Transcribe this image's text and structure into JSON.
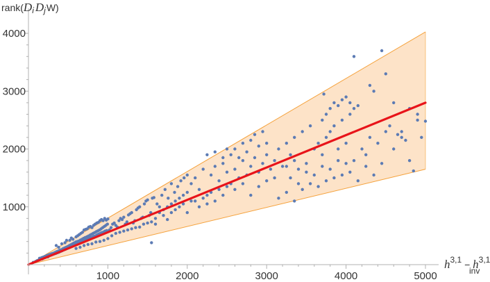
{
  "chart_data": {
    "type": "scatter",
    "title": "",
    "ylabel": {
      "prefix": "rank(",
      "d1": "D",
      "d1_sub": "i",
      "d2": "D",
      "d2_sub": "j",
      "suffix": "W)"
    },
    "xlabel": {
      "h1": "h",
      "h1_sup": "3,1",
      "minus": " − ",
      "h2": "h",
      "h2_sup": "3,1",
      "h2_sub": "inv"
    },
    "xlim": [
      0,
      5000
    ],
    "ylim": [
      0,
      4000
    ],
    "x_ticks": [
      1000,
      2000,
      3000,
      4000,
      5000
    ],
    "y_ticks": [
      1000,
      2000,
      3000,
      4000
    ],
    "x_tick_labels": [
      "1000",
      "2000",
      "3000",
      "4000",
      "5000"
    ],
    "y_tick_labels": [
      "1000",
      "2000",
      "3000",
      "4000"
    ],
    "fit_line": {
      "slope": 0.56,
      "intercept": 0,
      "color": "#e8141a"
    },
    "band": {
      "upper_slope": 0.805,
      "lower_slope": 0.33,
      "fill": "#fde3c8",
      "edge": "#f5a23c"
    },
    "point_color": "#5c7bb4",
    "grid": false,
    "points": [
      [
        60,
        40
      ],
      [
        90,
        55
      ],
      [
        110,
        70
      ],
      [
        130,
        80
      ],
      [
        140,
        110
      ],
      [
        150,
        95
      ],
      [
        165,
        120
      ],
      [
        175,
        100
      ],
      [
        185,
        130
      ],
      [
        195,
        115
      ],
      [
        205,
        140
      ],
      [
        215,
        125
      ],
      [
        225,
        150
      ],
      [
        235,
        160
      ],
      [
        245,
        135
      ],
      [
        255,
        170
      ],
      [
        265,
        155
      ],
      [
        275,
        180
      ],
      [
        285,
        165
      ],
      [
        295,
        190
      ],
      [
        305,
        175
      ],
      [
        315,
        200
      ],
      [
        325,
        185
      ],
      [
        335,
        210
      ],
      [
        345,
        195
      ],
      [
        355,
        225
      ],
      [
        365,
        205
      ],
      [
        375,
        235
      ],
      [
        385,
        215
      ],
      [
        395,
        250
      ],
      [
        405,
        230
      ],
      [
        415,
        260
      ],
      [
        425,
        240
      ],
      [
        435,
        275
      ],
      [
        445,
        255
      ],
      [
        455,
        290
      ],
      [
        465,
        265
      ],
      [
        475,
        300
      ],
      [
        485,
        280
      ],
      [
        495,
        315
      ],
      [
        505,
        290
      ],
      [
        515,
        330
      ],
      [
        525,
        300
      ],
      [
        535,
        345
      ],
      [
        545,
        315
      ],
      [
        555,
        360
      ],
      [
        565,
        325
      ],
      [
        575,
        375
      ],
      [
        585,
        340
      ],
      [
        595,
        390
      ],
      [
        605,
        350
      ],
      [
        615,
        400
      ],
      [
        625,
        365
      ],
      [
        635,
        410
      ],
      [
        645,
        380
      ],
      [
        655,
        425
      ],
      [
        665,
        390
      ],
      [
        675,
        440
      ],
      [
        685,
        400
      ],
      [
        695,
        455
      ],
      [
        705,
        415
      ],
      [
        715,
        470
      ],
      [
        725,
        425
      ],
      [
        735,
        480
      ],
      [
        745,
        440
      ],
      [
        755,
        495
      ],
      [
        765,
        450
      ],
      [
        775,
        510
      ],
      [
        785,
        465
      ],
      [
        795,
        525
      ],
      [
        805,
        475
      ],
      [
        815,
        540
      ],
      [
        825,
        490
      ],
      [
        835,
        555
      ],
      [
        845,
        500
      ],
      [
        855,
        570
      ],
      [
        865,
        515
      ],
      [
        875,
        585
      ],
      [
        885,
        530
      ],
      [
        895,
        600
      ],
      [
        905,
        540
      ],
      [
        915,
        620
      ],
      [
        925,
        555
      ],
      [
        935,
        640
      ],
      [
        945,
        565
      ],
      [
        955,
        660
      ],
      [
        965,
        580
      ],
      [
        975,
        680
      ],
      [
        985,
        590
      ],
      [
        995,
        700
      ],
      [
        350,
        330
      ],
      [
        380,
        300
      ],
      [
        420,
        360
      ],
      [
        460,
        380
      ],
      [
        480,
        420
      ],
      [
        520,
        420
      ],
      [
        540,
        460
      ],
      [
        560,
        440
      ],
      [
        600,
        480
      ],
      [
        620,
        500
      ],
      [
        640,
        520
      ],
      [
        660,
        540
      ],
      [
        680,
        560
      ],
      [
        700,
        600
      ],
      [
        720,
        610
      ],
      [
        740,
        620
      ],
      [
        760,
        650
      ],
      [
        780,
        660
      ],
      [
        800,
        640
      ],
      [
        820,
        680
      ],
      [
        840,
        700
      ],
      [
        860,
        720
      ],
      [
        880,
        730
      ],
      [
        900,
        760
      ],
      [
        920,
        780
      ],
      [
        940,
        760
      ],
      [
        960,
        800
      ],
      [
        980,
        770
      ],
      [
        1000,
        790
      ],
      [
        600,
        280
      ],
      [
        650,
        300
      ],
      [
        700,
        330
      ],
      [
        750,
        350
      ],
      [
        800,
        360
      ],
      [
        850,
        390
      ],
      [
        900,
        400
      ],
      [
        950,
        420
      ],
      [
        1000,
        450
      ],
      [
        1020,
        600
      ],
      [
        1040,
        640
      ],
      [
        1060,
        700
      ],
      [
        1080,
        720
      ],
      [
        1100,
        680
      ],
      [
        1120,
        650
      ],
      [
        1140,
        760
      ],
      [
        1160,
        800
      ],
      [
        1180,
        780
      ],
      [
        1200,
        820
      ],
      [
        1220,
        700
      ],
      [
        1240,
        740
      ],
      [
        1260,
        860
      ],
      [
        1280,
        880
      ],
      [
        1300,
        900
      ],
      [
        1320,
        720
      ],
      [
        1340,
        760
      ],
      [
        1360,
        950
      ],
      [
        1380,
        980
      ],
      [
        1400,
        1000
      ],
      [
        1420,
        800
      ],
      [
        1440,
        820
      ],
      [
        1460,
        1050
      ],
      [
        1480,
        1100
      ],
      [
        1500,
        1120
      ],
      [
        1520,
        850
      ],
      [
        1540,
        900
      ],
      [
        1560,
        1150
      ],
      [
        1580,
        1160
      ],
      [
        1600,
        700
      ],
      [
        1050,
        500
      ],
      [
        1100,
        540
      ],
      [
        1150,
        560
      ],
      [
        1200,
        580
      ],
      [
        1250,
        600
      ],
      [
        1300,
        620
      ],
      [
        1350,
        640
      ],
      [
        1400,
        650
      ],
      [
        1450,
        700
      ],
      [
        1500,
        720
      ],
      [
        1550,
        740
      ],
      [
        1600,
        800
      ],
      [
        1650,
        900
      ],
      [
        1700,
        950
      ],
      [
        1750,
        1000
      ],
      [
        1800,
        1050
      ],
      [
        1850,
        1100
      ],
      [
        1900,
        1150
      ],
      [
        1950,
        1200
      ],
      [
        2000,
        1250
      ],
      [
        1620,
        1050
      ],
      [
        1680,
        1200
      ],
      [
        1720,
        1300
      ],
      [
        1760,
        1150
      ],
      [
        1800,
        1400
      ],
      [
        1840,
        1250
      ],
      [
        1880,
        1350
      ],
      [
        1920,
        1450
      ],
      [
        1960,
        1500
      ],
      [
        2000,
        1550
      ],
      [
        1550,
        380
      ],
      [
        1650,
        1000
      ],
      [
        1700,
        850
      ],
      [
        1750,
        780
      ],
      [
        1800,
        900
      ],
      [
        1850,
        950
      ],
      [
        1900,
        1000
      ],
      [
        1950,
        1050
      ],
      [
        2000,
        900
      ],
      [
        2050,
        1100
      ],
      [
        2050,
        1400
      ],
      [
        2100,
        1500
      ],
      [
        2150,
        1300
      ],
      [
        2200,
        1650
      ],
      [
        2250,
        1200
      ],
      [
        2300,
        1550
      ],
      [
        2350,
        1700
      ],
      [
        2400,
        1450
      ],
      [
        2450,
        1750
      ],
      [
        2500,
        1600
      ],
      [
        2100,
        1100
      ],
      [
        2150,
        1000
      ],
      [
        2200,
        1150
      ],
      [
        2250,
        1050
      ],
      [
        2300,
        1250
      ],
      [
        2350,
        1100
      ],
      [
        2400,
        1300
      ],
      [
        2450,
        1200
      ],
      [
        2500,
        1350
      ],
      [
        2550,
        1400
      ],
      [
        2600,
        1650
      ],
      [
        2650,
        1500
      ],
      [
        2700,
        1800
      ],
      [
        2750,
        1550
      ],
      [
        2800,
        1700
      ],
      [
        2850,
        1850
      ],
      [
        2900,
        1600
      ],
      [
        2950,
        1750
      ],
      [
        3000,
        1900
      ],
      [
        3050,
        1650
      ],
      [
        2550,
        1900
      ],
      [
        2600,
        2000
      ],
      [
        2650,
        1850
      ],
      [
        2700,
        2100
      ],
      [
        2750,
        1950
      ],
      [
        2800,
        2150
      ],
      [
        2850,
        2250
      ],
      [
        2900,
        2050
      ],
      [
        2950,
        2300
      ],
      [
        3000,
        2100
      ],
      [
        2250,
        1900
      ],
      [
        2350,
        1950
      ],
      [
        2450,
        1850
      ],
      [
        2500,
        2000
      ],
      [
        2600,
        1300
      ],
      [
        2700,
        1400
      ],
      [
        2800,
        1200
      ],
      [
        2900,
        1350
      ],
      [
        3000,
        1450
      ],
      [
        3100,
        1500
      ],
      [
        3100,
        1800
      ],
      [
        3150,
        2000
      ],
      [
        3200,
        1700
      ],
      [
        3250,
        2100
      ],
      [
        3300,
        1900
      ],
      [
        3350,
        2200
      ],
      [
        3400,
        1650
      ],
      [
        3450,
        2300
      ],
      [
        3500,
        1750
      ],
      [
        3550,
        2400
      ],
      [
        3150,
        1150
      ],
      [
        3250,
        1250
      ],
      [
        3350,
        1100
      ],
      [
        3450,
        1300
      ],
      [
        3550,
        1400
      ],
      [
        3650,
        1350
      ],
      [
        3750,
        1450
      ],
      [
        3850,
        1500
      ],
      [
        3950,
        1550
      ],
      [
        4050,
        1600
      ],
      [
        3600,
        2000
      ],
      [
        3650,
        2100
      ],
      [
        3700,
        1900
      ],
      [
        3750,
        2200
      ],
      [
        3800,
        2300
      ],
      [
        3850,
        2400
      ],
      [
        3900,
        2000
      ],
      [
        3950,
        2500
      ],
      [
        4000,
        2100
      ],
      [
        4050,
        2600
      ],
      [
        3700,
        2500
      ],
      [
        3750,
        2600
      ],
      [
        3800,
        2700
      ],
      [
        3850,
        2800
      ],
      [
        3900,
        2750
      ],
      [
        3950,
        2850
      ],
      [
        4000,
        2900
      ],
      [
        4050,
        2800
      ],
      [
        4100,
        2700
      ],
      [
        4150,
        2750
      ],
      [
        3720,
        2950
      ],
      [
        4100,
        3600
      ],
      [
        4300,
        3100
      ],
      [
        4350,
        3000
      ],
      [
        4450,
        3700
      ],
      [
        4500,
        3300
      ],
      [
        4600,
        2800
      ],
      [
        4700,
        2300
      ],
      [
        4800,
        2700
      ],
      [
        4900,
        2600
      ],
      [
        4100,
        1800
      ],
      [
        4200,
        2000
      ],
      [
        4250,
        1900
      ],
      [
        4300,
        2200
      ],
      [
        4400,
        2100
      ],
      [
        4450,
        1750
      ],
      [
        4500,
        2300
      ],
      [
        4550,
        2400
      ],
      [
        4600,
        2000
      ],
      [
        4650,
        2250
      ],
      [
        4700,
        2200
      ],
      [
        4750,
        2150
      ],
      [
        4800,
        1800
      ],
      [
        4850,
        1620
      ],
      [
        4900,
        2500
      ],
      [
        4950,
        2200
      ],
      [
        5000,
        2480
      ],
      [
        4150,
        1450
      ],
      [
        4250,
        1700
      ],
      [
        4350,
        1550
      ],
      [
        3300,
        1500
      ],
      [
        3400,
        1400
      ],
      [
        3500,
        1600
      ],
      [
        3600,
        1550
      ],
      [
        3700,
        1700
      ],
      [
        3800,
        1650
      ],
      [
        3900,
        1800
      ],
      [
        4000,
        1750
      ],
      [
        3250,
        1700
      ],
      [
        3350,
        1800
      ]
    ]
  }
}
